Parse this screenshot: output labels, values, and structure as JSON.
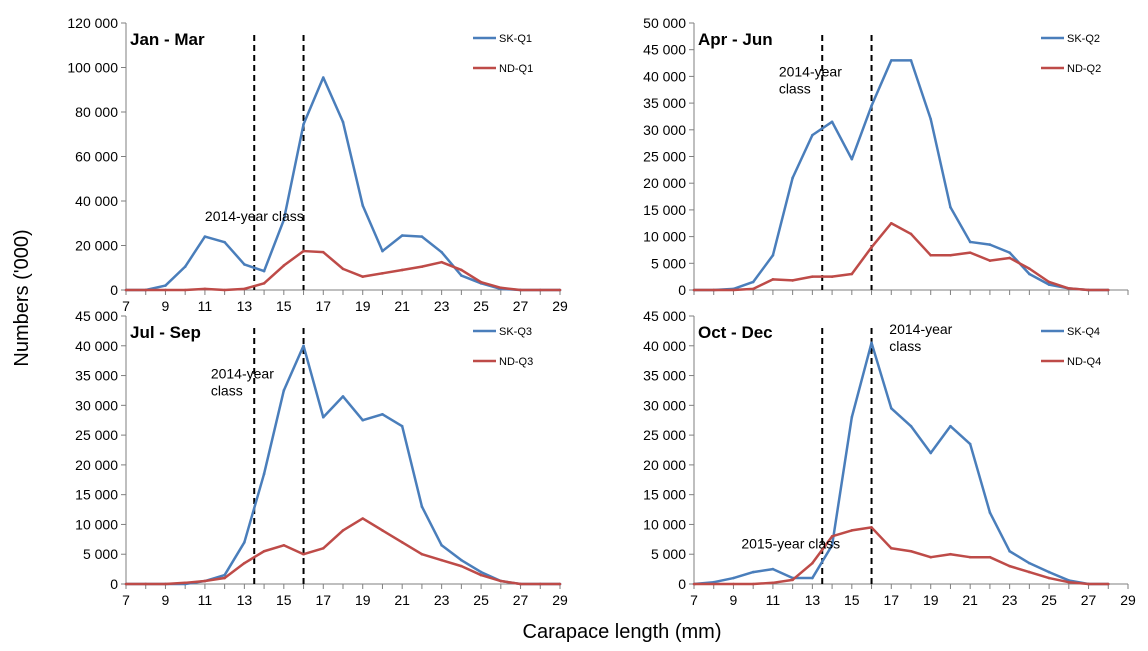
{
  "figure": {
    "xlabel": "Carapace length (mm)",
    "ylabel": "Numbers ('000)"
  },
  "colors": {
    "sk": "#4a7ebb",
    "nd": "#be4b48",
    "marker": "#000000"
  },
  "chart_data": [
    {
      "type": "line",
      "title": "Jan - Mar",
      "ylim": [
        0,
        120000
      ],
      "yticks": [
        0,
        20000,
        40000,
        60000,
        80000,
        100000,
        120000
      ],
      "ytick_labels": [
        "0",
        "20 000",
        "40 000",
        "60 000",
        "80 000",
        "100 000",
        "120 000"
      ],
      "xlim": [
        7,
        29
      ],
      "xticks": [
        7,
        9,
        11,
        13,
        15,
        17,
        19,
        21,
        23,
        25,
        27,
        29
      ],
      "x": [
        7,
        8,
        9,
        10,
        11,
        12,
        13,
        14,
        15,
        16,
        17,
        18,
        19,
        20,
        21,
        22,
        23,
        24,
        25,
        26,
        27,
        28,
        29
      ],
      "series": [
        {
          "name": "SK-Q1",
          "color": "#4a7ebb",
          "values": [
            0,
            0,
            2000,
            10500,
            24000,
            21500,
            11500,
            8500,
            31500,
            74500,
            95500,
            75500,
            38000,
            17500,
            24500,
            24000,
            17000,
            6500,
            3000,
            500,
            0,
            0,
            0
          ]
        },
        {
          "name": "ND-Q1",
          "color": "#be4b48",
          "values": [
            0,
            0,
            0,
            0,
            500,
            0,
            500,
            3000,
            11000,
            17500,
            17000,
            9500,
            6000,
            7500,
            9000,
            10500,
            12500,
            9000,
            3500,
            1000,
            0,
            0,
            0
          ]
        }
      ],
      "markers": [
        13.5,
        16
      ],
      "annotations": [
        {
          "lines": [
            "2014-year class"
          ],
          "x": 11,
          "y": 31000
        }
      ],
      "grid": false,
      "legend": "top-right"
    },
    {
      "type": "line",
      "title": "Apr - Jun",
      "ylim": [
        0,
        50000
      ],
      "yticks": [
        0,
        5000,
        10000,
        15000,
        20000,
        25000,
        30000,
        35000,
        40000,
        45000,
        50000
      ],
      "ytick_labels": [
        "0",
        "5 000",
        "10 000",
        "15 000",
        "20 000",
        "25 000",
        "30 000",
        "35 000",
        "40 000",
        "45 000",
        "50 000"
      ],
      "xlim": [
        7,
        29
      ],
      "xticks": [],
      "x": [
        7,
        8,
        9,
        10,
        11,
        12,
        13,
        14,
        15,
        16,
        17,
        18,
        19,
        20,
        21,
        22,
        23,
        24,
        25,
        26,
        27,
        28,
        29
      ],
      "series": [
        {
          "name": "SK-Q2",
          "color": "#4a7ebb",
          "values": [
            0,
            0,
            200,
            1500,
            6500,
            21000,
            29000,
            31500,
            24500,
            34500,
            43000,
            43000,
            32000,
            15500,
            9000,
            8500,
            7000,
            3000,
            1000,
            300,
            0,
            0,
            null
          ]
        },
        {
          "name": "ND-Q2",
          "color": "#be4b48",
          "values": [
            0,
            0,
            0,
            200,
            2000,
            1800,
            2500,
            2500,
            3000,
            8000,
            12500,
            10500,
            6500,
            6500,
            7000,
            5500,
            6000,
            4000,
            1500,
            300,
            0,
            0,
            null
          ]
        }
      ],
      "markers": [
        13.5,
        16
      ],
      "annotations": [
        {
          "lines": [
            "2014-year",
            "class"
          ],
          "x": 11.3,
          "y": 40000
        }
      ],
      "grid": false,
      "legend": "top-right"
    },
    {
      "type": "line",
      "title": "Jul - Sep",
      "ylim": [
        0,
        45000
      ],
      "yticks": [
        0,
        5000,
        10000,
        15000,
        20000,
        25000,
        30000,
        35000,
        40000,
        45000
      ],
      "ytick_labels": [
        "0",
        "5 000",
        "10 000",
        "15 000",
        "20 000",
        "25 000",
        "30 000",
        "35 000",
        "40 000",
        "45 000"
      ],
      "xlim": [
        7,
        29
      ],
      "xticks": [
        7,
        9,
        11,
        13,
        15,
        17,
        19,
        21,
        23,
        25,
        27,
        29
      ],
      "x": [
        7,
        8,
        9,
        10,
        11,
        12,
        13,
        14,
        15,
        16,
        17,
        18,
        19,
        20,
        21,
        22,
        23,
        24,
        25,
        26,
        27,
        28,
        29
      ],
      "series": [
        {
          "name": "SK-Q3",
          "color": "#4a7ebb",
          "values": [
            0,
            0,
            0,
            0,
            500,
            1500,
            7000,
            18500,
            32500,
            40000,
            28000,
            31500,
            27500,
            28500,
            26500,
            13000,
            6500,
            4000,
            2000,
            500,
            0,
            0,
            0
          ]
        },
        {
          "name": "ND-Q3",
          "color": "#be4b48",
          "values": [
            0,
            0,
            0,
            200,
            500,
            1000,
            3500,
            5500,
            6500,
            5000,
            6000,
            9000,
            11000,
            9000,
            7000,
            5000,
            4000,
            3000,
            1500,
            500,
            0,
            0,
            0
          ]
        }
      ],
      "markers": [
        13.5,
        16
      ],
      "annotations": [
        {
          "lines": [
            "2014-year",
            "class"
          ],
          "x": 11.3,
          "y": 34500
        }
      ],
      "grid": false,
      "legend": "top-right"
    },
    {
      "type": "line",
      "title": "Oct - Dec",
      "ylim": [
        0,
        45000
      ],
      "yticks": [
        0,
        5000,
        10000,
        15000,
        20000,
        25000,
        30000,
        35000,
        40000,
        45000
      ],
      "ytick_labels": [
        "0",
        "5 000",
        "10 000",
        "15 000",
        "20 000",
        "25 000",
        "30 000",
        "35 000",
        "40 000",
        "45 000"
      ],
      "xlim": [
        7,
        29
      ],
      "xticks": [
        7,
        9,
        11,
        13,
        15,
        17,
        19,
        21,
        23,
        25,
        27,
        29
      ],
      "x": [
        7,
        8,
        9,
        10,
        11,
        12,
        13,
        14,
        15,
        16,
        17,
        18,
        19,
        20,
        21,
        22,
        23,
        24,
        25,
        26,
        27,
        28,
        29
      ],
      "series": [
        {
          "name": "SK-Q4",
          "color": "#4a7ebb",
          "values": [
            0,
            300,
            1000,
            2000,
            2500,
            1000,
            1000,
            6500,
            28000,
            40500,
            29500,
            26500,
            22000,
            26500,
            23500,
            12000,
            5500,
            3500,
            2000,
            600,
            0,
            0,
            null
          ]
        },
        {
          "name": "ND-Q4",
          "color": "#be4b48",
          "values": [
            0,
            0,
            0,
            0,
            200,
            700,
            3500,
            8000,
            9000,
            9500,
            6000,
            5500,
            4500,
            5000,
            4500,
            4500,
            3000,
            2000,
            1000,
            300,
            0,
            0,
            null
          ]
        }
      ],
      "markers": [
        13.5,
        16
      ],
      "annotations": [
        {
          "lines": [
            "2014-year",
            "class"
          ],
          "x": 16.9,
          "y": 42000
        },
        {
          "lines": [
            "2015-year class"
          ],
          "x": 9.4,
          "y": 6000
        }
      ],
      "grid": false,
      "legend": "top-right"
    }
  ]
}
